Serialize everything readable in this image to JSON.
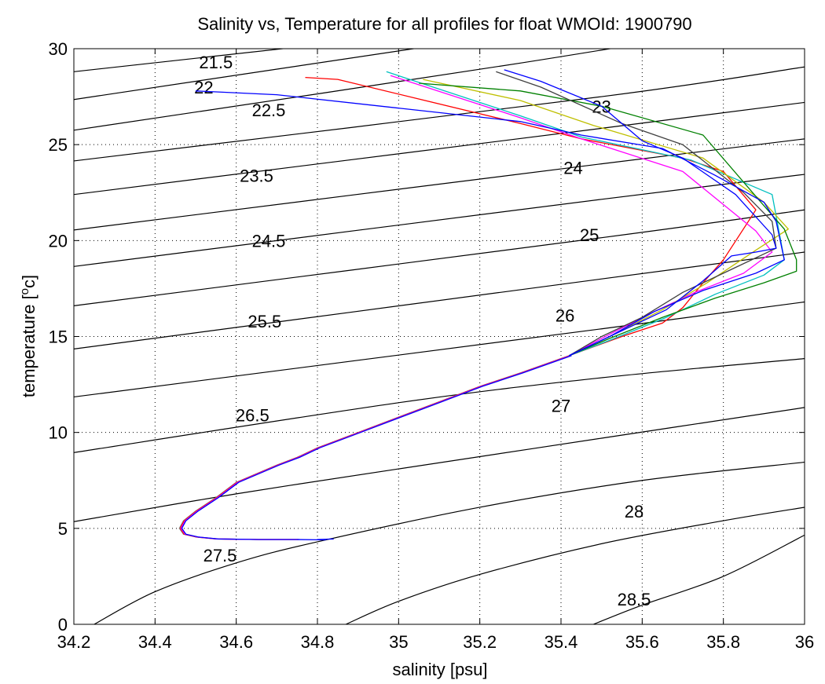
{
  "chart_data": {
    "type": "line",
    "title": "Salinity vs, Temperature for all profiles for float WMOId: 1900790",
    "xlabel": "salinity [psu]",
    "ylabel_text": "temperature [",
    "ylabel_sup": "o",
    "ylabel_unit": "c]",
    "xlim": [
      34.2,
      36
    ],
    "ylim": [
      0,
      30
    ],
    "x_ticks": [
      "34.2",
      "34.4",
      "34.6",
      "34.8",
      "35",
      "35.2",
      "35.4",
      "35.6",
      "35.8",
      "36"
    ],
    "y_ticks": [
      "0",
      "5",
      "10",
      "15",
      "20",
      "25",
      "30"
    ],
    "grid": "dotted",
    "isopycnals": [
      {
        "label": "21.5",
        "label_at": [
          34.55,
          29.3
        ],
        "points": [
          [
            34.2,
            28.8
          ],
          [
            34.8,
            30.2
          ]
        ]
      },
      {
        "label": "22",
        "label_at": [
          34.52,
          28.0
        ],
        "points": [
          [
            34.2,
            27.35
          ],
          [
            35.1,
            30.2
          ]
        ]
      },
      {
        "label": "22.5",
        "label_at": [
          34.68,
          26.8
        ],
        "points": [
          [
            34.2,
            25.75
          ],
          [
            35.3,
            29.25
          ],
          [
            36.0,
            31.7
          ]
        ]
      },
      {
        "label": "23",
        "label_at": [
          35.5,
          27.0
        ],
        "points": [
          [
            34.2,
            24.15
          ],
          [
            35.5,
            27.5
          ],
          [
            36.0,
            29.05
          ]
        ]
      },
      {
        "label": "23.5",
        "label_at": [
          34.65,
          23.4
        ],
        "points": [
          [
            34.2,
            22.4
          ],
          [
            35.5,
            25.85
          ],
          [
            36.0,
            27.2
          ]
        ]
      },
      {
        "label": "24",
        "label_at": [
          35.43,
          23.8
        ],
        "points": [
          [
            34.2,
            20.55
          ],
          [
            35.5,
            24.0
          ],
          [
            36.0,
            25.3
          ]
        ]
      },
      {
        "label": "24.5",
        "label_at": [
          34.68,
          20.0
        ],
        "points": [
          [
            34.2,
            18.65
          ],
          [
            35.5,
            22.15
          ],
          [
            36.0,
            23.45
          ]
        ]
      },
      {
        "label": "25",
        "label_at": [
          35.47,
          20.3
        ],
        "points": [
          [
            34.2,
            16.6
          ],
          [
            35.5,
            20.15
          ],
          [
            36.0,
            21.6
          ]
        ]
      },
      {
        "label": "25.5",
        "label_at": [
          34.67,
          15.8
        ],
        "points": [
          [
            34.2,
            14.35
          ],
          [
            35.5,
            18.0
          ],
          [
            36.0,
            19.4
          ]
        ]
      },
      {
        "label": "26",
        "label_at": [
          35.41,
          16.1
        ],
        "points": [
          [
            34.2,
            11.85
          ],
          [
            35.5,
            15.4
          ],
          [
            36.0,
            16.8
          ]
        ]
      },
      {
        "label": "26.5",
        "label_at": [
          34.64,
          10.9
        ],
        "points": [
          [
            34.2,
            8.95
          ],
          [
            35.0,
            11.55
          ],
          [
            35.5,
            12.85
          ],
          [
            36.0,
            13.85
          ]
        ]
      },
      {
        "label": "27",
        "label_at": [
          35.4,
          11.4
        ],
        "points": [
          [
            34.2,
            5.35
          ],
          [
            34.6,
            6.8
          ],
          [
            35.0,
            8.1
          ],
          [
            35.5,
            9.7
          ],
          [
            36.0,
            11.3
          ]
        ]
      },
      {
        "label": "27.5",
        "label_at": [
          34.56,
          3.6
        ],
        "points": [
          [
            34.25,
            0.0
          ],
          [
            34.4,
            1.7
          ],
          [
            34.6,
            3.2
          ],
          [
            34.8,
            4.3
          ],
          [
            35.2,
            6.1
          ],
          [
            35.6,
            7.5
          ],
          [
            36.0,
            8.45
          ]
        ]
      },
      {
        "label": "28",
        "label_at": [
          35.58,
          5.9
        ],
        "points": [
          [
            34.87,
            0.0
          ],
          [
            35.0,
            1.2
          ],
          [
            35.2,
            2.6
          ],
          [
            35.5,
            4.2
          ],
          [
            35.8,
            5.4
          ],
          [
            36.0,
            6.1
          ]
        ]
      },
      {
        "label": "28.5",
        "label_at": [
          35.58,
          1.3
        ],
        "points": [
          [
            35.48,
            0.0
          ],
          [
            35.6,
            1.0
          ],
          [
            35.8,
            2.5
          ],
          [
            36.0,
            4.65
          ]
        ]
      }
    ],
    "deep_profile": [
      [
        35.42,
        14.0
      ],
      [
        35.3,
        13.1
      ],
      [
        35.2,
        12.4
      ],
      [
        35.1,
        11.6
      ],
      [
        35.0,
        10.8
      ],
      [
        34.9,
        10.0
      ],
      [
        34.8,
        9.2
      ],
      [
        34.75,
        8.7
      ],
      [
        34.7,
        8.3
      ],
      [
        34.6,
        7.4
      ],
      [
        34.55,
        6.6
      ],
      [
        34.5,
        5.9
      ],
      [
        34.47,
        5.4
      ],
      [
        34.46,
        5.0
      ],
      [
        34.47,
        4.7
      ],
      [
        34.5,
        4.55
      ],
      [
        34.55,
        4.45
      ],
      [
        34.65,
        4.42
      ],
      [
        34.75,
        4.42
      ]
    ],
    "series": [
      {
        "color": "#0000ff",
        "points": [
          [
            34.75,
            4.42
          ],
          [
            34.82,
            4.4
          ],
          [
            34.8,
            4.42
          ],
          [
            34.84,
            4.45
          ]
        ]
      },
      {
        "color": "#ff0000",
        "points": [
          [
            34.77,
            28.5
          ],
          [
            34.85,
            28.4
          ],
          [
            35.3,
            26.1
          ],
          [
            35.45,
            25.3
          ],
          [
            35.7,
            24.3
          ],
          [
            35.8,
            23.6
          ],
          [
            35.88,
            21.6
          ],
          [
            35.8,
            19.0
          ],
          [
            35.75,
            17.8
          ],
          [
            35.7,
            16.5
          ],
          [
            35.65,
            15.7
          ],
          [
            35.55,
            15.0
          ],
          [
            35.42,
            14.0
          ]
        ]
      },
      {
        "color": "#00bfbf",
        "points": [
          [
            34.97,
            28.8
          ],
          [
            35.3,
            26.5
          ],
          [
            35.45,
            25.4
          ],
          [
            35.72,
            24.2
          ],
          [
            35.92,
            22.4
          ],
          [
            35.95,
            19.0
          ],
          [
            35.9,
            18.2
          ],
          [
            35.78,
            17.2
          ],
          [
            35.66,
            16.0
          ],
          [
            35.52,
            14.8
          ],
          [
            35.42,
            14.0
          ]
        ]
      },
      {
        "color": "#ff00ff",
        "points": [
          [
            34.98,
            28.6
          ],
          [
            35.3,
            26.4
          ],
          [
            35.45,
            25.3
          ],
          [
            35.7,
            23.6
          ],
          [
            35.88,
            20.5
          ],
          [
            35.92,
            19.4
          ],
          [
            35.85,
            18.3
          ],
          [
            35.73,
            17.3
          ],
          [
            35.62,
            16.2
          ],
          [
            35.5,
            14.9
          ],
          [
            35.42,
            14.0
          ]
        ]
      },
      {
        "color": "#bfbf00",
        "points": [
          [
            35.06,
            28.4
          ],
          [
            35.3,
            27.3
          ],
          [
            35.48,
            26.0
          ],
          [
            35.75,
            24.3
          ],
          [
            35.9,
            22.0
          ],
          [
            35.96,
            20.6
          ],
          [
            35.88,
            19.5
          ],
          [
            35.76,
            17.8
          ],
          [
            35.65,
            16.4
          ],
          [
            35.52,
            15.0
          ],
          [
            35.42,
            14.0
          ]
        ]
      },
      {
        "color": "#008000",
        "points": [
          [
            35.05,
            28.2
          ],
          [
            35.3,
            27.8
          ],
          [
            35.5,
            27.0
          ],
          [
            35.75,
            25.5
          ],
          [
            35.88,
            22.3
          ],
          [
            35.95,
            20.6
          ],
          [
            35.98,
            19.0
          ],
          [
            35.98,
            18.4
          ],
          [
            35.9,
            17.8
          ],
          [
            35.78,
            17.0
          ],
          [
            35.65,
            16.0
          ],
          [
            35.52,
            14.9
          ],
          [
            35.42,
            14.0
          ]
        ]
      },
      {
        "color": "#404040",
        "points": [
          [
            35.24,
            28.8
          ],
          [
            35.35,
            28.0
          ],
          [
            35.55,
            26.1
          ],
          [
            35.7,
            25.0
          ],
          [
            35.85,
            22.5
          ],
          [
            35.92,
            21.0
          ],
          [
            35.93,
            19.6
          ],
          [
            35.82,
            18.5
          ],
          [
            35.7,
            17.3
          ],
          [
            35.6,
            16.0
          ],
          [
            35.5,
            15.0
          ],
          [
            35.42,
            14.0
          ]
        ]
      },
      {
        "color": "#0000ff",
        "points": [
          [
            34.5,
            27.8
          ],
          [
            34.7,
            27.6
          ],
          [
            35.0,
            26.9
          ],
          [
            35.3,
            26.2
          ],
          [
            35.45,
            25.5
          ],
          [
            35.65,
            24.8
          ],
          [
            35.78,
            23.4
          ],
          [
            35.9,
            22.0
          ],
          [
            35.93,
            21.0
          ],
          [
            35.95,
            19.0
          ],
          [
            35.88,
            18.3
          ],
          [
            35.75,
            17.4
          ],
          [
            35.63,
            16.3
          ],
          [
            35.52,
            15.0
          ],
          [
            35.42,
            14.0
          ]
        ]
      },
      {
        "color": "#0000ff",
        "points": [
          [
            35.26,
            28.9
          ],
          [
            35.35,
            28.3
          ],
          [
            35.5,
            27.0
          ],
          [
            35.6,
            25.2
          ],
          [
            35.7,
            24.3
          ],
          [
            35.83,
            22.4
          ],
          [
            35.92,
            20.3
          ],
          [
            35.93,
            19.6
          ],
          [
            35.88,
            19.4
          ],
          [
            35.82,
            19.2
          ],
          [
            35.75,
            17.9
          ],
          [
            35.66,
            16.4
          ],
          [
            35.53,
            15.1
          ],
          [
            35.42,
            14.0
          ]
        ]
      }
    ]
  }
}
